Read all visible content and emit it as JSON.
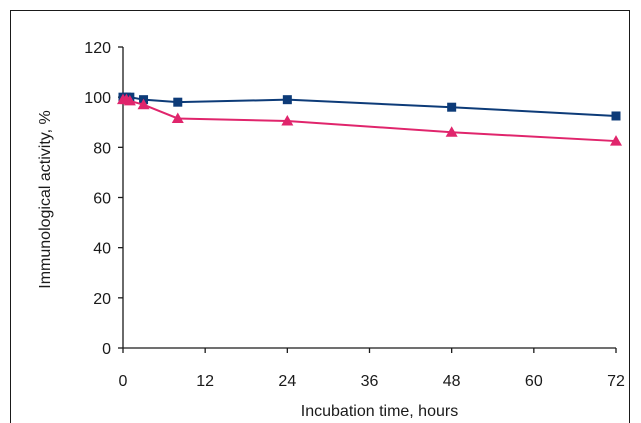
{
  "chart_data": {
    "type": "line",
    "title": "",
    "xlabel": "Incubation time, hours",
    "ylabel": "Immunological activity, %",
    "xlim": [
      0,
      72
    ],
    "ylim": [
      0,
      120
    ],
    "x_ticks": [
      "0",
      "12",
      "24",
      "36",
      "48",
      "60",
      "72"
    ],
    "y_ticks": [
      "0",
      "20",
      "40",
      "60",
      "80",
      "100",
      "120"
    ],
    "grid": false,
    "legend": "none",
    "series": [
      {
        "marker": "square",
        "color": "#0d3b78",
        "x": [
          0,
          0.5,
          1,
          3,
          8,
          24,
          48,
          72
        ],
        "y": [
          100,
          100,
          100,
          99,
          98,
          99,
          96,
          92.5
        ]
      },
      {
        "marker": "triangle",
        "color": "#e0256c",
        "x": [
          0,
          0.5,
          1,
          3,
          8,
          24,
          48,
          72
        ],
        "y": [
          99,
          99,
          98.5,
          97,
          91.5,
          90.5,
          86,
          82.5
        ]
      }
    ]
  }
}
